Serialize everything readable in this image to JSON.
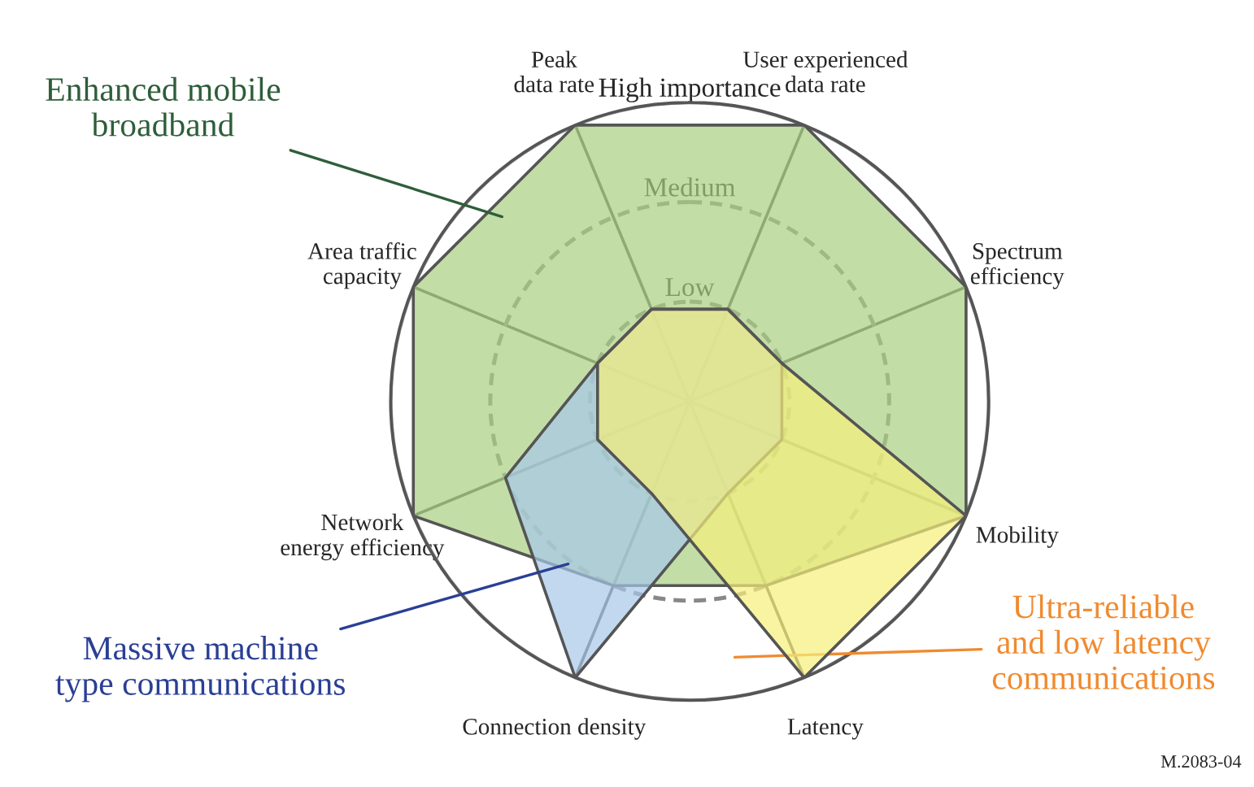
{
  "chart_data": {
    "type": "radar",
    "categories": [
      "User experienced\ndata rate",
      "Spectrum\nefficiency",
      "Mobility",
      "Latency",
      "Connection density",
      "Network\nenergy efficiency",
      "Area traffic\ncapacity",
      "Peak\ndata rate"
    ],
    "series": [
      {
        "name": "Enhanced mobile\nbroadband",
        "color": "#a9cf82",
        "values": [
          3,
          3,
          3,
          2,
          2,
          3,
          3,
          3
        ]
      },
      {
        "name": "Massive machine\ntype communications",
        "color": "#a6c8e8",
        "values": [
          1,
          1,
          1,
          1,
          3,
          2,
          1,
          1
        ]
      },
      {
        "name": "Ultra-reliable\nand low latency\ncommunications",
        "color": "#f5f07a",
        "values": [
          1,
          1,
          3,
          3,
          1,
          1,
          1,
          1
        ]
      }
    ],
    "ylim": [
      0,
      3
    ],
    "yticks": [
      {
        "value": 1,
        "label": "Low"
      },
      {
        "value": 2,
        "label": "Medium"
      },
      {
        "value": 3,
        "label": "High importance"
      }
    ],
    "grid": true,
    "legend": false,
    "annotations": [
      "M.2083-04"
    ]
  }
}
